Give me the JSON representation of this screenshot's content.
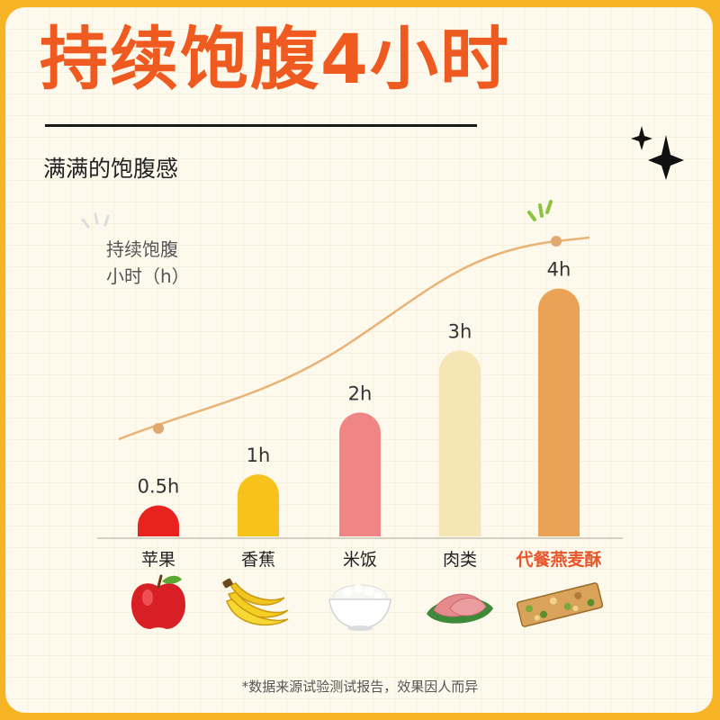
{
  "page": {
    "title": "持续饱腹4小时",
    "subtitle": "满满的饱腹感",
    "footnote": "*数据来源试验测试报告，效果因人而异"
  },
  "chart_data": {
    "type": "bar",
    "ylabel_line1": "持续饱腹",
    "ylabel_line2": "小时（h）",
    "categories": [
      "苹果",
      "香蕉",
      "米饭",
      "肉类",
      "代餐燕麦酥"
    ],
    "values": [
      0.5,
      1,
      2,
      3,
      4
    ],
    "value_labels": [
      "0.5h",
      "1h",
      "2h",
      "3h",
      "4h"
    ],
    "highlight_index": 4,
    "ylim": [
      0,
      4.3
    ],
    "trend_line": true,
    "grid": false,
    "legend": "none"
  },
  "colors": {
    "accent": "#ee5a1f",
    "highlight_label": "#e8562a",
    "bars": [
      "#e8221f",
      "#f7c21c",
      "#f08585",
      "#f6e6b6",
      "#eaa356"
    ],
    "trend": "#e9b378"
  },
  "icons": [
    "apple-icon",
    "banana-icon",
    "rice-bowl-icon",
    "meat-icon",
    "oat-bar-icon",
    "sparkle-icon"
  ]
}
